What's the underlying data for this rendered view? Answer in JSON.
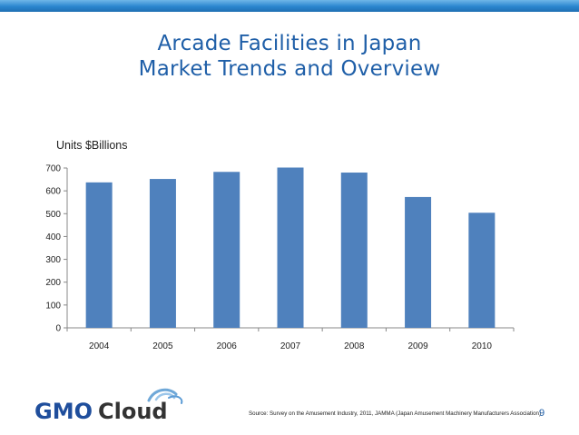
{
  "slide": {
    "title_line1": "Arcade Facilities in Japan",
    "title_line2": "Market Trends and Overview",
    "units_label": "Units $Billions",
    "source": "Source: Survey on the Amusement Industry, 2011, JAMMA (Japan Amusement Machinery Manufacturers Association)",
    "page_number": "9",
    "logo_text_left": "GMO",
    "logo_text_right": "Cloud",
    "colors": {
      "title": "#1f5fa8",
      "bar": "#4f81bd",
      "top_bar": "#2b86cf",
      "logo_gmo": "#1f4e9c",
      "logo_cloud": "#333333"
    }
  },
  "chart_data": {
    "type": "bar",
    "categories": [
      "2004",
      "2005",
      "2006",
      "2007",
      "2008",
      "2009",
      "2010"
    ],
    "values": [
      637,
      652,
      683,
      702,
      680,
      573,
      504
    ],
    "ylim": [
      0,
      700
    ],
    "yticks": [
      "0",
      "100",
      "200",
      "300",
      "400",
      "500",
      "600",
      "700"
    ],
    "ylabel": "Units $Billions",
    "grid": false,
    "legend": "none"
  }
}
